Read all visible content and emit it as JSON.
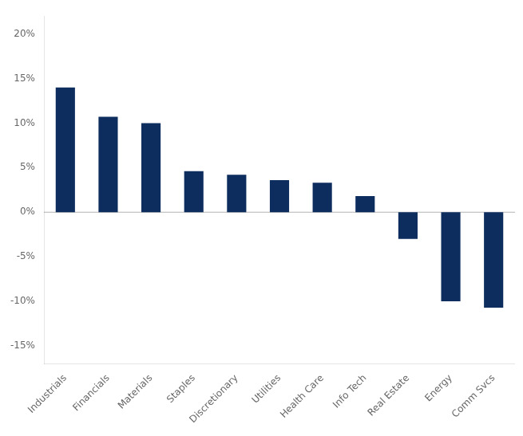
{
  "chart_data": {
    "type": "bar",
    "categories": [
      "Industrials",
      "Financials",
      "Materials",
      "Staples",
      "Discretionary",
      "Utilities",
      "Health Care",
      "Info Tech",
      "Real Estate",
      "Energy",
      "Comm Svcs"
    ],
    "values": [
      14.0,
      10.7,
      10.0,
      4.6,
      4.2,
      3.6,
      3.3,
      1.8,
      -3.0,
      -10.0,
      -10.7
    ],
    "color": "#0d2d5e",
    "ylim": [
      -17,
      22
    ],
    "yticks": [
      {
        "value": -15,
        "label": "-15%"
      },
      {
        "value": -10,
        "label": "-10%"
      },
      {
        "value": -5,
        "label": "-5%"
      },
      {
        "value": 0,
        "label": "0%"
      },
      {
        "value": 5,
        "label": "5%"
      },
      {
        "value": 10,
        "label": "10%"
      },
      {
        "value": 15,
        "label": "15%"
      },
      {
        "value": 20,
        "label": "20%"
      }
    ],
    "grid": false
  }
}
